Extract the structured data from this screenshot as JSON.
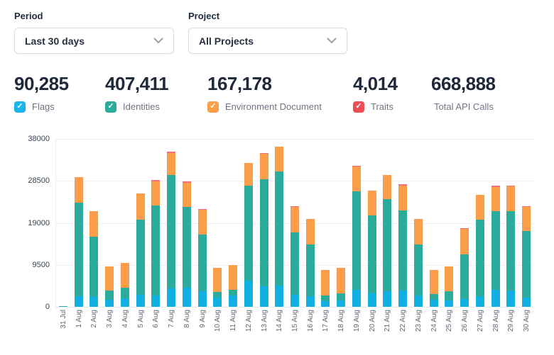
{
  "controls": {
    "period": {
      "label": "Period",
      "value": "Last 30 days"
    },
    "project": {
      "label": "Project",
      "value": "All Projects"
    }
  },
  "stats": [
    {
      "value": "90,285",
      "label": "Flags",
      "color": "#1cb4ea",
      "checkbox": true
    },
    {
      "value": "407,411",
      "label": "Identities",
      "color": "#2cab9d",
      "checkbox": true
    },
    {
      "value": "167,178",
      "label": "Environment Document",
      "color": "#fb9e4a",
      "checkbox": true
    },
    {
      "value": "4,014",
      "label": "Traits",
      "color": "#ef4d56",
      "checkbox": true
    },
    {
      "value": "668,888",
      "label": "Total API Calls",
      "checkbox": false
    }
  ],
  "chart_data": {
    "type": "bar",
    "stacked": true,
    "title": "",
    "xlabel": "",
    "ylabel": "",
    "ylim": [
      0,
      38000
    ],
    "yticks": [
      0,
      9500,
      19000,
      28500,
      38000
    ],
    "grid": true,
    "legend_position": "stats-row-checkboxes",
    "categories": [
      "31 Jul",
      "1 Aug",
      "2 Aug",
      "3 Aug",
      "4 Aug",
      "5 Aug",
      "6 Aug",
      "7 Aug",
      "8 Aug",
      "9 Aug",
      "10 Aug",
      "11 Aug",
      "12 Aug",
      "13 Aug",
      "14 Aug",
      "15 Aug",
      "16 Aug",
      "17 Aug",
      "18 Aug",
      "19 Aug",
      "20 Aug",
      "21 Aug",
      "22 Aug",
      "23 Aug",
      "24 Aug",
      "25 Aug",
      "26 Aug",
      "27 Aug",
      "28 Aug",
      "29 Aug",
      "30 Aug"
    ],
    "series": [
      {
        "name": "Flags",
        "key": "flags",
        "color": "#10b0e2",
        "values": [
          0,
          2400,
          2300,
          1600,
          2000,
          2800,
          2600,
          4100,
          4300,
          3600,
          2100,
          2500,
          6000,
          4600,
          4800,
          2700,
          2400,
          1300,
          1500,
          3800,
          3000,
          3500,
          3700,
          2600,
          1600,
          1400,
          1800,
          2400,
          3900,
          3700,
          2100
        ]
      },
      {
        "name": "Identities",
        "key": "identities",
        "color": "#2cab9d",
        "values": [
          150,
          21200,
          13500,
          2100,
          2300,
          16900,
          20400,
          25700,
          18300,
          12800,
          1200,
          1400,
          21400,
          24300,
          25800,
          14200,
          11700,
          1350,
          1600,
          22400,
          17700,
          20800,
          18100,
          11500,
          1300,
          2100,
          10000,
          17400,
          17700,
          18000,
          15000
        ]
      },
      {
        "name": "Environment Document",
        "key": "environment-document",
        "color": "#fb9e4a",
        "values": [
          0,
          5800,
          5800,
          5400,
          5700,
          5900,
          5400,
          5000,
          5500,
          5500,
          5500,
          5500,
          5200,
          5700,
          5600,
          5700,
          5800,
          5700,
          5700,
          5500,
          5600,
          5500,
          5700,
          5800,
          5500,
          5600,
          5800,
          5500,
          5500,
          5500,
          5500
        ]
      },
      {
        "name": "Traits",
        "key": "traits",
        "color": "#f2707c",
        "values": [
          0,
          0,
          0,
          0,
          0,
          0,
          300,
          400,
          300,
          200,
          0,
          0,
          0,
          200,
          0,
          100,
          0,
          0,
          0,
          200,
          0,
          0,
          200,
          0,
          0,
          0,
          100,
          0,
          300,
          300,
          100
        ]
      }
    ]
  }
}
